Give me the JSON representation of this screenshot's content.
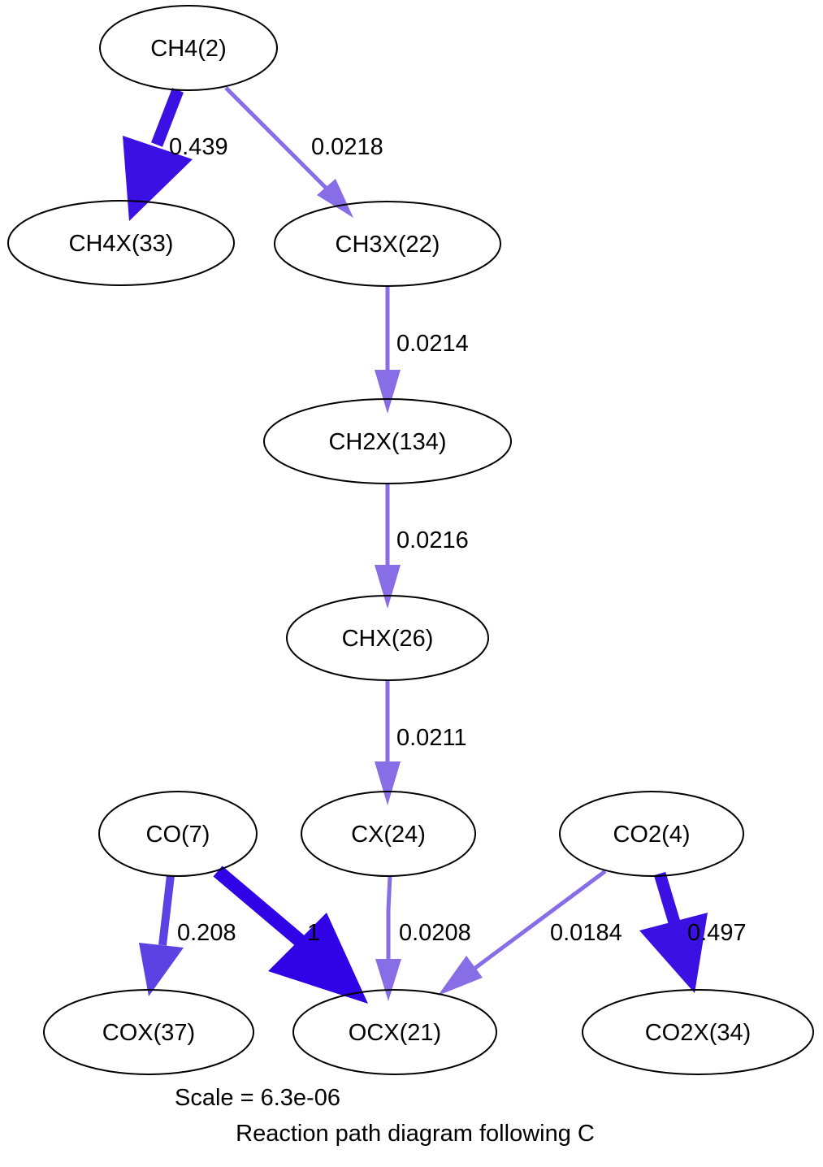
{
  "nodes": {
    "ch4": "CH4(2)",
    "ch4x": "CH4X(33)",
    "ch3x": "CH3X(22)",
    "ch2x": "CH2X(134)",
    "chx": "CHX(26)",
    "co": "CO(7)",
    "cx": "CX(24)",
    "co2": "CO2(4)",
    "cox": "COX(37)",
    "ocx": "OCX(21)",
    "co2x": "CO2X(34)"
  },
  "edges": {
    "ch4_ch4x": "0.439",
    "ch4_ch3x": "0.0218",
    "ch3x_ch2x": "0.0214",
    "ch2x_chx": "0.0216",
    "chx_cx": "0.0211",
    "co_cox": "0.208",
    "co_ocx": "1",
    "cx_ocx": "0.0208",
    "co2_ocx": "0.0184",
    "co2_co2x": "0.497"
  },
  "caption": {
    "scale": "Scale = 6.3e-06",
    "title": "Reaction path diagram following C"
  },
  "colors": {
    "edge_light": "#876ee6",
    "edge_medium": "#5c41e3",
    "edge_dark": "#3b10e3",
    "edge_darkest": "#2f03e6",
    "node_stroke": "#000000",
    "background": "#ffffff"
  }
}
